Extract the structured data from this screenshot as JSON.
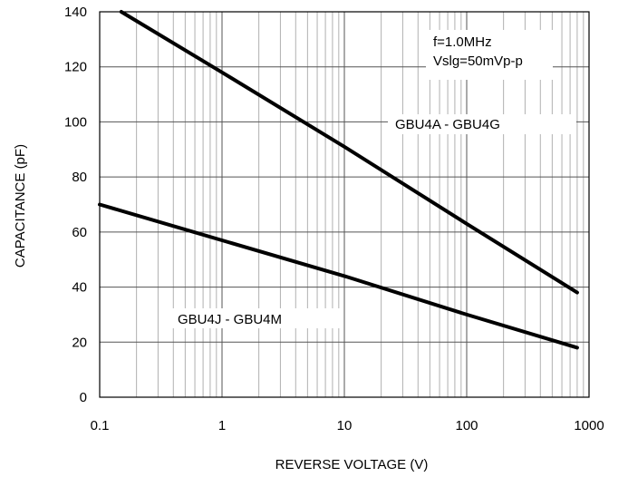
{
  "chart_data": {
    "type": "line",
    "title": "",
    "xlabel": "REVERSE VOLTAGE (V)",
    "ylabel": "CAPACITANCE (pF)",
    "xscale": "log",
    "xlim": [
      0.1,
      1000
    ],
    "ylim": [
      0,
      140
    ],
    "grid": true,
    "x_ticks": [
      0.1,
      1,
      10,
      100,
      1000
    ],
    "x_tick_labels": [
      "0.1",
      "1",
      "10",
      "100",
      "1000"
    ],
    "y_ticks": [
      0,
      20,
      40,
      60,
      80,
      100,
      120,
      140
    ],
    "y_tick_labels": [
      "0",
      "20",
      "40",
      "60",
      "80",
      "100",
      "120",
      "140"
    ],
    "series": [
      {
        "name": "GBU4A - GBU4G",
        "x": [
          0.15,
          1,
          10,
          100,
          800
        ],
        "y": [
          140,
          118,
          91,
          63,
          38
        ]
      },
      {
        "name": "GBU4J - GBU4M",
        "x": [
          0.1,
          1,
          10,
          100,
          800
        ],
        "y": [
          70,
          57,
          44,
          30,
          18
        ]
      }
    ],
    "annotations": [
      "f=1.0MHz",
      "Vslg=50mVp-p"
    ],
    "line_color": "#000000"
  }
}
